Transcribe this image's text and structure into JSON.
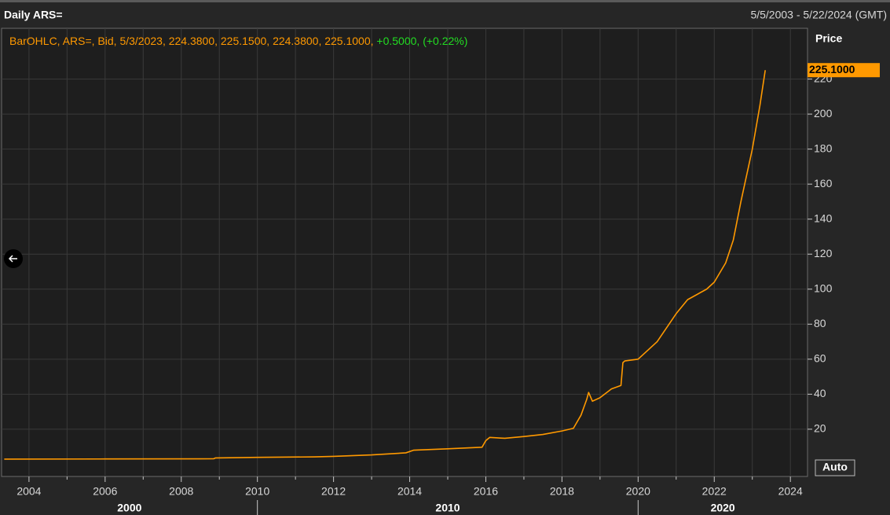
{
  "chart_data": {
    "type": "line",
    "title": "Daily ARS=",
    "date_range": "5/5/2003 - 5/22/2024 (GMT)",
    "legend_text": "BarOHLC, ARS=, Bid, 5/3/2023, 224.3800, 225.1500, 224.3800, 225.1000,",
    "legend_change": "+0.5000, (+0.22%)",
    "y_axis_label": "Price",
    "last_price_label": "225.1000",
    "auto_button": "Auto",
    "x": [
      2003.35,
      2006.0,
      2008.85,
      2008.9,
      2010.0,
      2011.5,
      2012.0,
      2013.0,
      2013.9,
      2014.1,
      2015.0,
      2015.9,
      2016.0,
      2016.1,
      2016.5,
      2017.0,
      2017.5,
      2018.0,
      2018.3,
      2018.5,
      2018.65,
      2018.7,
      2018.8,
      2019.0,
      2019.3,
      2019.55,
      2019.6,
      2019.65,
      2020.0,
      2020.5,
      2021.0,
      2021.3,
      2021.8,
      2022.0,
      2022.3,
      2022.5,
      2022.7,
      2022.9,
      2023.0,
      2023.2,
      2023.34
    ],
    "series": [
      {
        "name": "ARS=",
        "color": "#ff9900",
        "values": [
          2.9,
          3.0,
          3.1,
          3.6,
          3.9,
          4.2,
          4.5,
          5.3,
          6.5,
          8.0,
          8.8,
          9.7,
          13.5,
          15.3,
          14.8,
          15.8,
          17.0,
          19.0,
          20.5,
          28,
          37,
          41,
          36,
          38,
          43,
          45,
          58,
          59,
          60,
          70,
          86,
          94,
          100,
          104,
          115,
          128,
          150,
          170,
          180,
          205,
          225.1
        ]
      }
    ],
    "xlim": [
      2003.28,
      2024.45
    ],
    "xticks": [
      2004,
      2006,
      2008,
      2010,
      2012,
      2014,
      2016,
      2018,
      2020,
      2022,
      2024
    ],
    "xminor": [
      2005,
      2007,
      2009,
      2011,
      2013,
      2015,
      2017,
      2019,
      2021,
      2023
    ],
    "xdecades": [
      2000,
      2010,
      2020
    ],
    "ylim": [
      -7,
      249
    ],
    "yticks": [
      20,
      40,
      60,
      80,
      100,
      120,
      140,
      160,
      180,
      200,
      220
    ],
    "grid": true
  }
}
